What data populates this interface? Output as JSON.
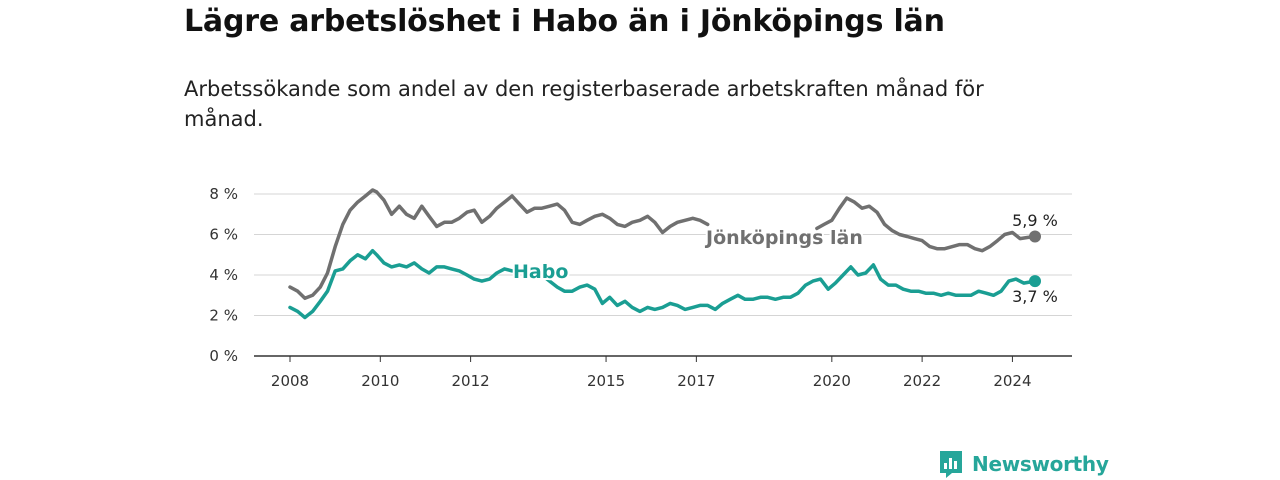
{
  "title": "Lägre arbetslöshet i Habo än i Jönköpings län",
  "subtitle": "Arbetssökande som andel av den registerbaserade arbetskraften månad för månad.",
  "brand": {
    "name": "Newsworthy",
    "icon": "newsworthy-logo-icon"
  },
  "colors": {
    "jonkoping": "#707070",
    "habo": "#1a9e93",
    "grid": "#d5d5d5",
    "axis": "#333333"
  },
  "chart_data": {
    "type": "line",
    "title": "Lägre arbetslöshet i Habo än i Jönköpings län",
    "xlabel": "",
    "ylabel": "",
    "xlim": [
      2008,
      2025.2
    ],
    "ylim": [
      0,
      8
    ],
    "yticks": [
      0,
      2,
      4,
      6,
      8
    ],
    "ytick_labels": [
      "0 %",
      "2 %",
      "4 %",
      "6 %",
      "8 %"
    ],
    "xticks": [
      2008,
      2010,
      2012,
      2015,
      2017,
      2020,
      2022,
      2024
    ],
    "xtick_labels": [
      "2008",
      "2010",
      "2012",
      "2015",
      "2017",
      "2020",
      "2022",
      "2024"
    ],
    "grid": true,
    "series": [
      {
        "name": "Jönköpings län",
        "label": "Jönköpings län",
        "end_label": "5,9 %",
        "segments": [
          {
            "x": [
              2008.0,
              2008.17,
              2008.33,
              2008.5,
              2008.67,
              2008.83,
              2009.0,
              2009.17,
              2009.33,
              2009.5,
              2009.67,
              2009.83,
              2009.92,
              2010.08,
              2010.25,
              2010.42,
              2010.58,
              2010.75,
              2010.92,
              2011.08,
              2011.25,
              2011.42,
              2011.58,
              2011.75,
              2011.92,
              2012.08,
              2012.25,
              2012.42,
              2012.58,
              2012.75,
              2012.92,
              2013.08,
              2013.25,
              2013.42,
              2013.58,
              2013.75,
              2013.92,
              2014.08,
              2014.25,
              2014.42,
              2014.58,
              2014.75,
              2014.92,
              2015.08,
              2015.25,
              2015.42,
              2015.58,
              2015.75,
              2015.92,
              2016.08,
              2016.25,
              2016.42,
              2016.58,
              2016.75,
              2016.92,
              2017.08,
              2017.25
            ],
            "y": [
              3.4,
              3.2,
              2.85,
              3.0,
              3.4,
              4.1,
              5.4,
              6.5,
              7.2,
              7.6,
              7.9,
              8.2,
              8.1,
              7.7,
              7.0,
              7.4,
              7.0,
              6.8,
              7.4,
              6.9,
              6.4,
              6.6,
              6.6,
              6.8,
              7.1,
              7.2,
              6.6,
              6.9,
              7.3,
              7.6,
              7.9,
              7.5,
              7.1,
              7.3,
              7.3,
              7.4,
              7.5,
              7.2,
              6.6,
              6.5,
              6.7,
              6.9,
              7.0,
              6.8,
              6.5,
              6.4,
              6.6,
              6.7,
              6.9,
              6.6,
              6.1,
              6.4,
              6.6,
              6.7,
              6.8,
              6.7,
              6.5
            ]
          },
          {
            "x": [
              2019.67,
              2019.83,
              2020.0,
              2020.17,
              2020.33,
              2020.5,
              2020.67,
              2020.83,
              2021.0,
              2021.17,
              2021.33,
              2021.5,
              2021.67,
              2021.83,
              2022.0,
              2022.17,
              2022.33,
              2022.5,
              2022.67,
              2022.83,
              2023.0,
              2023.17,
              2023.33,
              2023.5,
              2023.67,
              2023.83,
              2024.0,
              2024.17,
              2024.33,
              2024.5
            ],
            "y": [
              6.3,
              6.5,
              6.7,
              7.3,
              7.8,
              7.6,
              7.3,
              7.4,
              7.1,
              6.5,
              6.2,
              6.0,
              5.9,
              5.8,
              5.7,
              5.4,
              5.3,
              5.3,
              5.4,
              5.5,
              5.5,
              5.3,
              5.2,
              5.4,
              5.7,
              6.0,
              6.1,
              5.8,
              5.85,
              5.9
            ]
          }
        ]
      },
      {
        "name": "Habo",
        "label": "Habo",
        "end_label": "3,7 %",
        "segments": [
          {
            "x": [
              2008.0,
              2008.17,
              2008.33,
              2008.5,
              2008.67,
              2008.83,
              2009.0,
              2009.17,
              2009.33,
              2009.5,
              2009.67,
              2009.83,
              2009.92,
              2010.08,
              2010.25,
              2010.42,
              2010.58,
              2010.75,
              2010.92,
              2011.08,
              2011.25,
              2011.42,
              2011.58,
              2011.75,
              2011.92,
              2012.08,
              2012.25,
              2012.42,
              2012.58,
              2012.75,
              2012.92
            ],
            "y": [
              2.4,
              2.2,
              1.9,
              2.2,
              2.7,
              3.2,
              4.2,
              4.3,
              4.7,
              5.0,
              4.8,
              5.2,
              5.0,
              4.6,
              4.4,
              4.5,
              4.4,
              4.6,
              4.3,
              4.1,
              4.4,
              4.4,
              4.3,
              4.2,
              4.0,
              3.8,
              3.7,
              3.8,
              4.1,
              4.3,
              4.2
            ]
          },
          {
            "x": [
              2013.58,
              2013.75,
              2013.92,
              2014.08,
              2014.25,
              2014.42,
              2014.58,
              2014.75,
              2014.92,
              2015.08,
              2015.25,
              2015.42,
              2015.58,
              2015.75,
              2015.92,
              2016.08,
              2016.25,
              2016.42,
              2016.58,
              2016.75,
              2016.92,
              2017.08,
              2017.25,
              2017.42,
              2017.58,
              2017.75,
              2017.92,
              2018.08,
              2018.25,
              2018.42,
              2018.58,
              2018.75,
              2018.92,
              2019.08,
              2019.25,
              2019.42,
              2019.58,
              2019.75,
              2019.92,
              2020.08,
              2020.25,
              2020.42,
              2020.58,
              2020.75,
              2020.92,
              2021.08,
              2021.25,
              2021.42,
              2021.58,
              2021.75,
              2021.92,
              2022.08,
              2022.25,
              2022.42,
              2022.58,
              2022.75,
              2022.92,
              2023.08,
              2023.25,
              2023.42,
              2023.58,
              2023.75,
              2023.92,
              2024.08,
              2024.25,
              2024.5
            ],
            "y": [
              4.0,
              3.7,
              3.4,
              3.2,
              3.2,
              3.4,
              3.5,
              3.3,
              2.6,
              2.9,
              2.5,
              2.7,
              2.4,
              2.2,
              2.4,
              2.3,
              2.4,
              2.6,
              2.5,
              2.3,
              2.4,
              2.5,
              2.5,
              2.3,
              2.6,
              2.8,
              3.0,
              2.8,
              2.8,
              2.9,
              2.9,
              2.8,
              2.9,
              2.9,
              3.1,
              3.5,
              3.7,
              3.8,
              3.3,
              3.6,
              4.0,
              4.4,
              4.0,
              4.1,
              4.5,
              3.8,
              3.5,
              3.5,
              3.3,
              3.2,
              3.2,
              3.1,
              3.1,
              3.0,
              3.1,
              3.0,
              3.0,
              3.0,
              3.2,
              3.1,
              3.0,
              3.2,
              3.7,
              3.8,
              3.6,
              3.7
            ]
          }
        ]
      }
    ]
  }
}
